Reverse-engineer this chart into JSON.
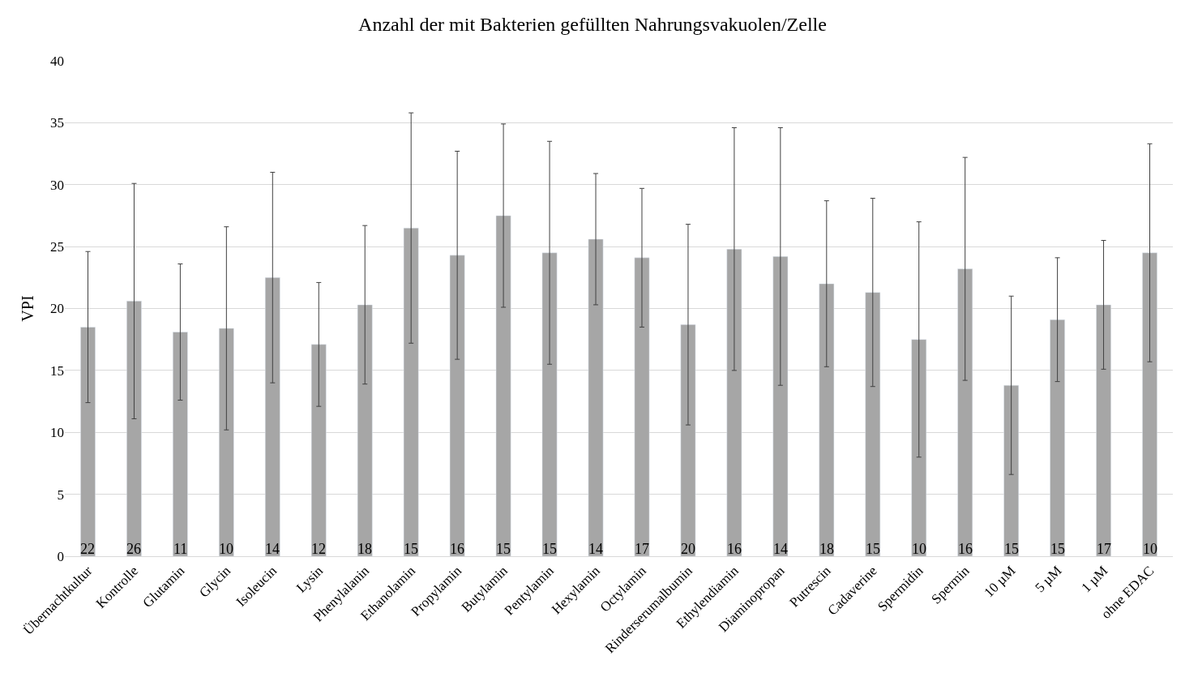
{
  "chart_data": {
    "type": "bar",
    "title": "Anzahl der mit Bakterien gefüllten Nahrungsvakuolen/Zelle",
    "ylabel": "VPI",
    "categories": [
      "Übernachtkultur",
      "Kontrolle",
      "Glutamin",
      "Glycin",
      "Isoleucin",
      "Lysin",
      "Phenylalanin",
      "Ethanolamin",
      "Propylamin",
      "Butylamin",
      "Pentylamin",
      "Hexylamin",
      "Octylamin",
      "Rinderserumalbumin",
      "Ethylendiamin",
      "Diaminopropan",
      "Putrescin",
      "Cadaverine",
      "Spermidin",
      "Spermin",
      "10 µM",
      "5 µM",
      "1 µM",
      "ohne EDAC"
    ],
    "values": [
      18.5,
      20.6,
      18.1,
      18.4,
      22.5,
      17.1,
      20.3,
      26.5,
      24.3,
      27.5,
      24.5,
      25.6,
      24.1,
      18.7,
      24.8,
      24.2,
      22.0,
      21.3,
      17.5,
      23.2,
      13.8,
      19.1,
      20.3,
      24.5
    ],
    "errors": [
      6.1,
      9.5,
      5.5,
      8.2,
      8.5,
      5.0,
      6.4,
      9.3,
      8.4,
      7.4,
      9.0,
      5.3,
      5.6,
      8.1,
      9.8,
      10.4,
      6.7,
      7.6,
      9.5,
      9.0,
      7.2,
      5.0,
      5.2,
      8.8
    ],
    "color": "#a6a6a6",
    "ylim": [
      0,
      40
    ],
    "yticks": [
      0,
      5,
      10,
      15,
      20,
      25,
      30,
      35,
      40
    ],
    "grid": "y",
    "annotations": [
      {
        "text": "22",
        "x": "Übernachtkultur",
        "y": 0
      },
      {
        "text": "26",
        "x": "Kontrolle",
        "y": 0
      },
      {
        "text": "11",
        "x": "Glutamin",
        "y": 0
      },
      {
        "text": "10",
        "x": "Glycin",
        "y": 0
      },
      {
        "text": "14",
        "x": "Isoleucin",
        "y": 0
      },
      {
        "text": "12",
        "x": "Lysin",
        "y": 0
      },
      {
        "text": "18",
        "x": "Phenylalanin",
        "y": 0
      },
      {
        "text": "15",
        "x": "Ethanolamin",
        "y": 0
      },
      {
        "text": "16",
        "x": "Propylamin",
        "y": 0
      },
      {
        "text": "15",
        "x": "Butylamin",
        "y": 0
      },
      {
        "text": "15",
        "x": "Pentylamin",
        "y": 0
      },
      {
        "text": "14",
        "x": "Hexylamin",
        "y": 0
      },
      {
        "text": "17",
        "x": "Octylamin",
        "y": 0
      },
      {
        "text": "20",
        "x": "Rinderserumalbumin",
        "y": 0
      },
      {
        "text": "16",
        "x": "Ethylendiamin",
        "y": 0
      },
      {
        "text": "14",
        "x": "Diaminopropan",
        "y": 0
      },
      {
        "text": "18",
        "x": "Putrescin",
        "y": 0
      },
      {
        "text": "15",
        "x": "Cadaverine",
        "y": 0
      },
      {
        "text": "10",
        "x": "Spermidin",
        "y": 0
      },
      {
        "text": "16",
        "x": "Spermin",
        "y": 0
      },
      {
        "text": "15",
        "x": "10 µM",
        "y": 0
      },
      {
        "text": "15",
        "x": "5 µM",
        "y": 0
      },
      {
        "text": "17",
        "x": "1 µM",
        "y": 0
      },
      {
        "text": "10",
        "x": "ohne EDAC",
        "y": 0
      }
    ]
  }
}
